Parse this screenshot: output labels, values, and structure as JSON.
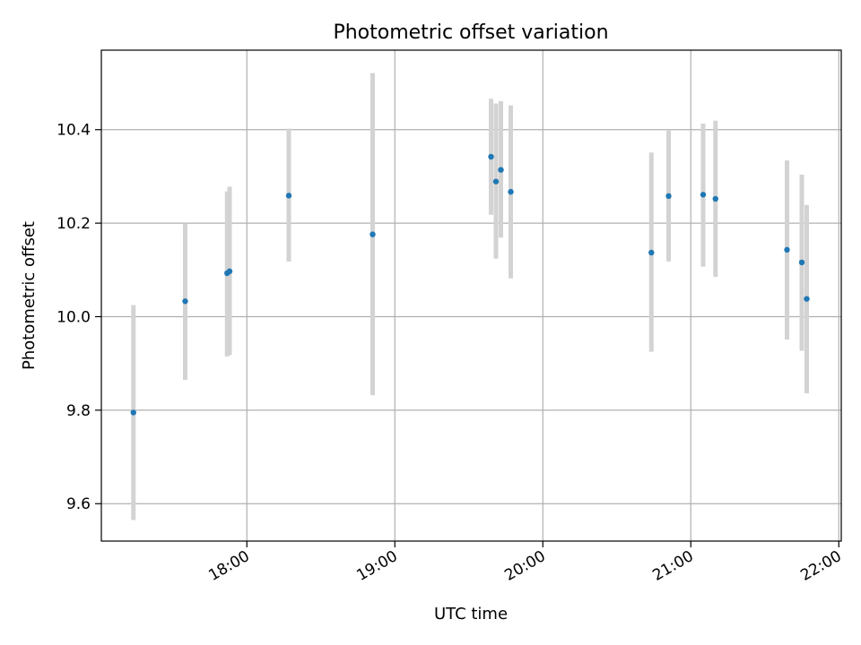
{
  "chart_data": {
    "type": "scatter",
    "title": "Photometric offset variation",
    "xlabel": "UTC time",
    "ylabel": "Photometric offset",
    "xlim": [
      "17:01",
      "22:01"
    ],
    "ylim": [
      9.52,
      10.57
    ],
    "grid": true,
    "x_ticks": [
      "18:00",
      "19:00",
      "20:00",
      "21:00",
      "22:00"
    ],
    "y_ticks": [
      9.6,
      9.8,
      10.0,
      10.2,
      10.4
    ],
    "y_tick_labels": [
      "9.6",
      "9.8",
      "10.0",
      "10.2",
      "10.4"
    ],
    "point_color": "#1f77b4",
    "errorbar_color": "#d3d3d3",
    "points": [
      {
        "x": "17:14",
        "y": 9.795,
        "ylow": 9.565,
        "yhigh": 10.025
      },
      {
        "x": "17:35",
        "y": 10.033,
        "ylow": 9.865,
        "yhigh": 10.198
      },
      {
        "x": "17:52",
        "y": 10.093,
        "ylow": 9.915,
        "yhigh": 10.268
      },
      {
        "x": "17:53",
        "y": 10.097,
        "ylow": 9.918,
        "yhigh": 10.278
      },
      {
        "x": "18:17",
        "y": 10.259,
        "ylow": 10.118,
        "yhigh": 10.402
      },
      {
        "x": "18:51",
        "y": 10.176,
        "ylow": 9.832,
        "yhigh": 10.521
      },
      {
        "x": "19:39",
        "y": 10.342,
        "ylow": 10.218,
        "yhigh": 10.466
      },
      {
        "x": "19:41",
        "y": 10.289,
        "ylow": 10.124,
        "yhigh": 10.456
      },
      {
        "x": "19:43",
        "y": 10.314,
        "ylow": 10.169,
        "yhigh": 10.461
      },
      {
        "x": "19:47",
        "y": 10.267,
        "ylow": 10.082,
        "yhigh": 10.452
      },
      {
        "x": "20:44",
        "y": 10.137,
        "ylow": 9.925,
        "yhigh": 10.351
      },
      {
        "x": "20:51",
        "y": 10.258,
        "ylow": 10.118,
        "yhigh": 10.398
      },
      {
        "x": "21:05",
        "y": 10.261,
        "ylow": 10.107,
        "yhigh": 10.413
      },
      {
        "x": "21:10",
        "y": 10.252,
        "ylow": 10.085,
        "yhigh": 10.419
      },
      {
        "x": "21:39",
        "y": 10.143,
        "ylow": 9.951,
        "yhigh": 10.334
      },
      {
        "x": "21:45",
        "y": 10.116,
        "ylow": 9.927,
        "yhigh": 10.304
      },
      {
        "x": "21:47",
        "y": 10.038,
        "ylow": 9.836,
        "yhigh": 10.239
      }
    ]
  }
}
